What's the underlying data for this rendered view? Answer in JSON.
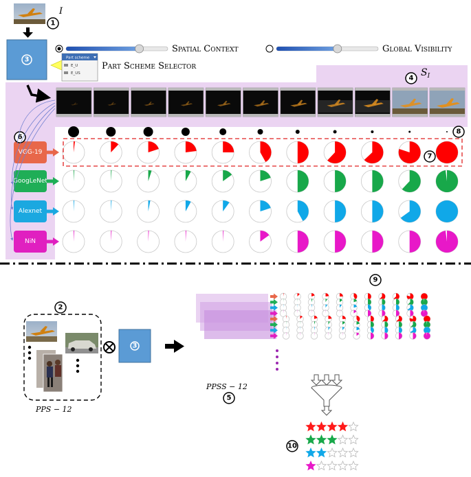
{
  "labels": {
    "input_symbol": "I",
    "spatial_context": "Spatial Context",
    "global_visibility": "Global Visibility",
    "part_scheme_selector": "Part Scheme Selector",
    "dropdown_title": "Part scheme",
    "dropdown_option_1": "E_U",
    "dropdown_option_2": "E_US",
    "sequence_symbol": "S",
    "sequence_subscript": "I",
    "pps_label": "PPS − 12",
    "ppss_label": "PPSS − 12",
    "model_box_number": "3"
  },
  "callouts": [
    "1",
    "2",
    "3",
    "4",
    "5",
    "6",
    "7",
    "8",
    "9",
    "10"
  ],
  "networks": [
    {
      "name": "VGG-19",
      "color": "#e8674a",
      "pie_color": "#ff0000"
    },
    {
      "name": "GoogLeNet",
      "color": "#1fae57",
      "pie_color": "#18a84a"
    },
    {
      "name": "Alexnet",
      "color": "#1ba8e0",
      "pie_color": "#10a8e8"
    },
    {
      "name": "NiN",
      "color": "#e020c0",
      "pie_color": "#e818c8"
    }
  ],
  "pie_fractions": [
    [
      0.02,
      0.12,
      0.2,
      0.23,
      0.25,
      0.42,
      0.5,
      0.62,
      0.63,
      0.8,
      1.0
    ],
    [
      0.01,
      0.01,
      0.05,
      0.08,
      0.15,
      0.2,
      0.5,
      0.5,
      0.5,
      0.62,
      0.98
    ],
    [
      0.01,
      0.01,
      0.03,
      0.08,
      0.1,
      0.2,
      0.42,
      0.5,
      0.5,
      0.65,
      1.0
    ],
    [
      0.01,
      0.01,
      0.01,
      0.01,
      0.01,
      0.15,
      0.5,
      0.5,
      0.5,
      0.5,
      0.98
    ]
  ],
  "visibility_dot_sizes": [
    8,
    7,
    7,
    6,
    5,
    4,
    3,
    2.5,
    2,
    1.5,
    1
  ],
  "slider_values": {
    "spatial_context": 0.72,
    "global_visibility": 0.6
  },
  "ratings": [
    {
      "network": "VGG-19",
      "filled": 4,
      "total": 5,
      "color": "#ff1a1a"
    },
    {
      "network": "GoogLeNet",
      "filled": 3,
      "total": 5,
      "color": "#18a84a"
    },
    {
      "network": "Alexnet",
      "filled": 2,
      "total": 5,
      "color": "#10a8e8"
    },
    {
      "network": "NiN",
      "filled": 1,
      "total": 5,
      "color": "#e818c8"
    }
  ]
}
